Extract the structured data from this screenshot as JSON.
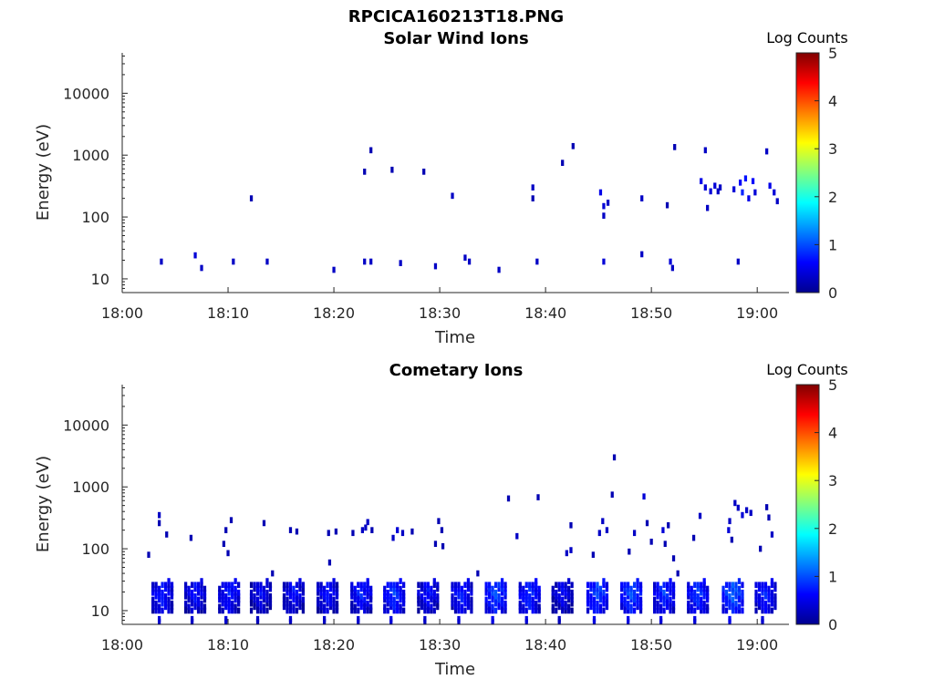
{
  "figure": {
    "title": "RPCICA160213T18.PNG"
  },
  "colors": {
    "axis": "#262626",
    "colormap": [
      "#00008f",
      "#0000ff",
      "#0080ff",
      "#00ffff",
      "#80ff80",
      "#ffff00",
      "#ff8000",
      "#ff0000",
      "#800000"
    ]
  },
  "chart_data": [
    {
      "type": "heatmap",
      "title": "Solar Wind Ions",
      "xlabel": "Time",
      "ylabel": "Energy (eV)",
      "xlim_min": [
        0,
        63
      ],
      "ylim": [
        6,
        45000
      ],
      "yscale": "log",
      "x_ticks": [
        "18:00",
        "18:10",
        "18:20",
        "18:30",
        "18:40",
        "18:50",
        "19:00"
      ],
      "x_tick_values": [
        0,
        10,
        20,
        30,
        40,
        50,
        60
      ],
      "y_ticks": [
        "10",
        "100",
        "1000",
        "10000"
      ],
      "y_tick_values": [
        10,
        100,
        1000,
        10000
      ],
      "colorbar": {
        "label": "Log Counts",
        "range": [
          0,
          5
        ],
        "ticks": [
          "0",
          "1",
          "2",
          "3",
          "4",
          "5"
        ],
        "tick_values": [
          0,
          1,
          2,
          3,
          4,
          5
        ]
      },
      "cells": [
        [
          3.7,
          19,
          0.3
        ],
        [
          6.9,
          24,
          0.4
        ],
        [
          7.5,
          15,
          0.3
        ],
        [
          10.5,
          19,
          0.3
        ],
        [
          13.7,
          19,
          0.3
        ],
        [
          12.2,
          200,
          0.2
        ],
        [
          20.0,
          14,
          0.3
        ],
        [
          22.9,
          19,
          0.3
        ],
        [
          23.5,
          19,
          0.3
        ],
        [
          22.9,
          540,
          0.2
        ],
        [
          23.5,
          1200,
          0.2
        ],
        [
          25.5,
          580,
          0.2
        ],
        [
          26.3,
          18,
          0.3
        ],
        [
          28.5,
          540,
          0.2
        ],
        [
          29.6,
          16,
          0.3
        ],
        [
          31.2,
          220,
          0.3
        ],
        [
          32.4,
          22,
          0.3
        ],
        [
          32.8,
          19,
          0.3
        ],
        [
          35.6,
          14,
          0.3
        ],
        [
          38.8,
          300,
          0.3
        ],
        [
          38.8,
          200,
          0.2
        ],
        [
          39.2,
          19,
          0.3
        ],
        [
          41.6,
          750,
          0.2
        ],
        [
          42.6,
          1400,
          0.2
        ],
        [
          45.2,
          250,
          0.5
        ],
        [
          45.5,
          150,
          0.4
        ],
        [
          45.5,
          19,
          0.4
        ],
        [
          45.5,
          105,
          0.3
        ],
        [
          45.9,
          170,
          0.3
        ],
        [
          49.1,
          200,
          0.3
        ],
        [
          49.1,
          25,
          0.3
        ],
        [
          51.5,
          155,
          0.2
        ],
        [
          51.8,
          19,
          0.4
        ],
        [
          52.0,
          15,
          0.3
        ],
        [
          52.2,
          1350,
          0.2
        ],
        [
          54.7,
          380,
          0.5
        ],
        [
          55.1,
          300,
          0.4
        ],
        [
          55.1,
          1200,
          0.3
        ],
        [
          55.3,
          140,
          0.3
        ],
        [
          55.6,
          260,
          0.4
        ],
        [
          56.0,
          320,
          0.4
        ],
        [
          56.3,
          260,
          0.3
        ],
        [
          56.5,
          300,
          0.3
        ],
        [
          57.8,
          280,
          0.4
        ],
        [
          58.2,
          19,
          0.3
        ],
        [
          58.4,
          360,
          0.6
        ],
        [
          58.6,
          250,
          0.8
        ],
        [
          58.9,
          420,
          0.7
        ],
        [
          59.2,
          200,
          0.5
        ],
        [
          59.6,
          380,
          0.6
        ],
        [
          59.8,
          250,
          0.4
        ],
        [
          60.9,
          1150,
          0.3
        ],
        [
          61.2,
          320,
          0.5
        ],
        [
          61.6,
          250,
          0.4
        ],
        [
          61.9,
          180,
          0.3
        ]
      ]
    },
    {
      "type": "heatmap",
      "title": "Cometary Ions",
      "xlabel": "Time",
      "ylabel": "Energy (eV)",
      "xlim_min": [
        0,
        63
      ],
      "ylim": [
        6,
        45000
      ],
      "yscale": "log",
      "x_ticks": [
        "18:00",
        "18:10",
        "18:20",
        "18:30",
        "18:40",
        "18:50",
        "19:00"
      ],
      "x_tick_values": [
        0,
        10,
        20,
        30,
        40,
        50,
        60
      ],
      "y_ticks": [
        "10",
        "100",
        "1000",
        "10000"
      ],
      "y_tick_values": [
        10,
        100,
        1000,
        10000
      ],
      "colorbar": {
        "label": "Log Counts",
        "range": [
          0,
          5
        ],
        "ticks": [
          "0",
          "1",
          "2",
          "3",
          "4",
          "5"
        ],
        "tick_values": [
          0,
          1,
          2,
          3,
          4,
          5
        ]
      },
      "bursts": [
        [
          3.8,
          0.7
        ],
        [
          6.9,
          0.6
        ],
        [
          10.1,
          0.7
        ],
        [
          13.1,
          0.5
        ],
        [
          16.2,
          0.6
        ],
        [
          19.4,
          0.6
        ],
        [
          22.6,
          0.7
        ],
        [
          25.7,
          0.8
        ],
        [
          28.9,
          0.6
        ],
        [
          32.1,
          0.7
        ],
        [
          35.3,
          0.9
        ],
        [
          38.5,
          0.8
        ],
        [
          41.6,
          0.5
        ],
        [
          44.9,
          0.9
        ],
        [
          48.1,
          0.9
        ],
        [
          51.2,
          0.8
        ],
        [
          54.4,
          0.8
        ],
        [
          57.7,
          1.0
        ],
        [
          60.8,
          0.7
        ]
      ],
      "cells": [
        [
          2.5,
          80,
          0.2
        ],
        [
          3.5,
          350,
          0.3
        ],
        [
          3.5,
          260,
          0.2
        ],
        [
          4.2,
          170,
          0.2
        ],
        [
          6.5,
          150,
          0.2
        ],
        [
          9.8,
          200,
          0.2
        ],
        [
          9.6,
          120,
          0.2
        ],
        [
          10.0,
          85,
          0.2
        ],
        [
          10.3,
          290,
          0.2
        ],
        [
          13.4,
          260,
          0.2
        ],
        [
          14.2,
          40,
          0.2
        ],
        [
          15.9,
          200,
          0.2
        ],
        [
          16.5,
          190,
          0.2
        ],
        [
          19.6,
          60,
          0.2
        ],
        [
          19.5,
          180,
          0.2
        ],
        [
          20.2,
          190,
          0.2
        ],
        [
          21.8,
          180,
          0.2
        ],
        [
          22.7,
          200,
          0.3
        ],
        [
          23.0,
          220,
          0.3
        ],
        [
          23.2,
          270,
          0.3
        ],
        [
          23.6,
          200,
          0.2
        ],
        [
          25.6,
          150,
          0.3
        ],
        [
          26.0,
          200,
          0.4
        ],
        [
          26.5,
          180,
          0.3
        ],
        [
          27.4,
          190,
          0.2
        ],
        [
          29.6,
          120,
          0.2
        ],
        [
          29.9,
          280,
          0.2
        ],
        [
          30.2,
          200,
          0.2
        ],
        [
          30.3,
          110,
          0.2
        ],
        [
          33.6,
          40,
          0.2
        ],
        [
          36.5,
          650,
          0.2
        ],
        [
          37.3,
          160,
          0.3
        ],
        [
          39.3,
          680,
          0.2
        ],
        [
          42.0,
          85,
          0.3
        ],
        [
          42.4,
          95,
          0.3
        ],
        [
          42.4,
          240,
          0.2
        ],
        [
          44.5,
          80,
          0.2
        ],
        [
          45.1,
          180,
          0.3
        ],
        [
          45.4,
          280,
          0.3
        ],
        [
          45.8,
          200,
          0.3
        ],
        [
          46.5,
          3000,
          0.2
        ],
        [
          46.3,
          750,
          0.2
        ],
        [
          47.9,
          90,
          0.2
        ],
        [
          48.4,
          180,
          0.3
        ],
        [
          49.3,
          700,
          0.4
        ],
        [
          49.6,
          260,
          0.2
        ],
        [
          50.0,
          130,
          0.2
        ],
        [
          51.1,
          200,
          0.4
        ],
        [
          51.3,
          120,
          0.2
        ],
        [
          51.6,
          240,
          0.2
        ],
        [
          52.1,
          70,
          0.2
        ],
        [
          52.5,
          40,
          0.2
        ],
        [
          54.0,
          150,
          0.2
        ],
        [
          54.6,
          340,
          0.3
        ],
        [
          57.3,
          200,
          0.4
        ],
        [
          57.4,
          280,
          0.3
        ],
        [
          57.6,
          140,
          0.2
        ],
        [
          57.9,
          550,
          0.3
        ],
        [
          58.2,
          460,
          0.3
        ],
        [
          58.6,
          350,
          0.4
        ],
        [
          59.0,
          420,
          0.3
        ],
        [
          59.4,
          380,
          0.3
        ],
        [
          60.3,
          100,
          0.2
        ],
        [
          60.9,
          470,
          0.2
        ],
        [
          61.4,
          170,
          0.3
        ],
        [
          61.1,
          320,
          0.2
        ]
      ]
    }
  ]
}
